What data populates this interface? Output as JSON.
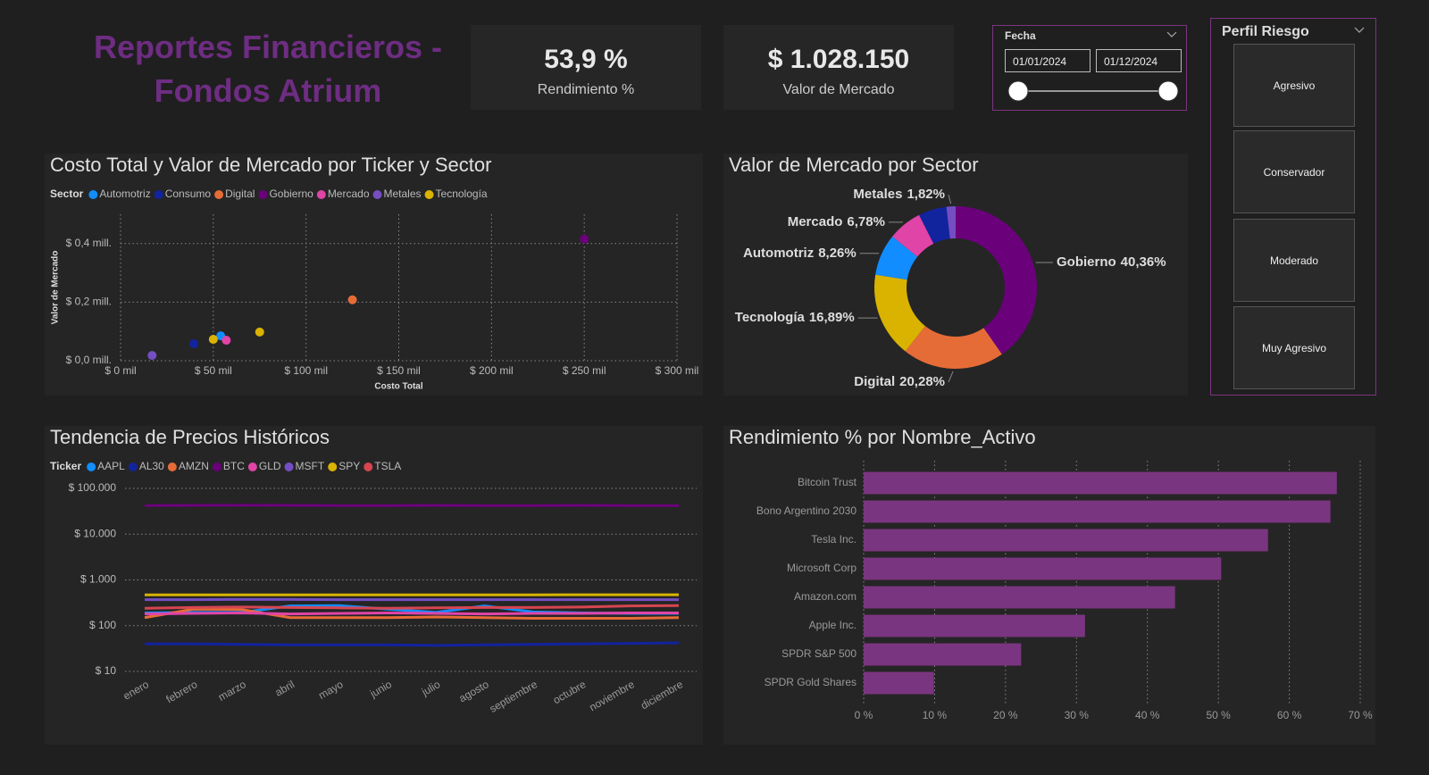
{
  "header": {
    "title": "Reportes Financieros - Fondos Atrium"
  },
  "kpis": [
    {
      "value": "53,9 %",
      "label": "Rendimiento %"
    },
    {
      "value": "$ 1.028.150",
      "label": "Valor de Mercado"
    }
  ],
  "date_filter": {
    "title": "Fecha",
    "start": "01/01/2024",
    "end": "01/12/2024"
  },
  "risk_filter": {
    "title": "Perfil Riesgo",
    "options": [
      "Agresivo",
      "Conservador",
      "Moderado",
      "Muy Agresivo"
    ]
  },
  "chart_data": [
    {
      "type": "scatter",
      "title": "Costo Total y Valor de Mercado por Ticker y Sector",
      "legend_title": "Sector",
      "x_label": "Costo Total",
      "y_label": "Valor de Mercado",
      "grid": true,
      "xlim": [
        0,
        300000
      ],
      "xticks": [
        {
          "value": 0,
          "label": "$ 0 mil"
        },
        {
          "value": 50000,
          "label": "$ 50 mil"
        },
        {
          "value": 100000,
          "label": "$ 100 mil"
        },
        {
          "value": 150000,
          "label": "$ 150 mil"
        },
        {
          "value": 200000,
          "label": "$ 200 mil"
        },
        {
          "value": 250000,
          "label": "$ 250 mil"
        },
        {
          "value": 300000,
          "label": "$ 300 mil"
        }
      ],
      "ylim": [
        0,
        500000
      ],
      "yticks": [
        {
          "value": 0,
          "label": "$ 0,0 mill."
        },
        {
          "value": 200000,
          "label": "$ 0,2 mill."
        },
        {
          "value": 400000,
          "label": "$ 0,4 mill."
        }
      ],
      "series": [
        {
          "name": "Automotriz",
          "color": "#118dff",
          "x": [
            54000
          ],
          "y": [
            85000
          ]
        },
        {
          "name": "Consumo",
          "color": "#12239e",
          "x": [
            39500
          ],
          "y": [
            58000
          ]
        },
        {
          "name": "Digital",
          "color": "#e66c37",
          "x": [
            125000
          ],
          "y": [
            208000
          ]
        },
        {
          "name": "Gobierno",
          "color": "#6b007b",
          "x": [
            250000
          ],
          "y": [
            415000
          ]
        },
        {
          "name": "Mercado",
          "color": "#e044a7",
          "x": [
            57000
          ],
          "y": [
            70000
          ]
        },
        {
          "name": "Metales",
          "color": "#744ec2",
          "x": [
            17000
          ],
          "y": [
            18000
          ]
        },
        {
          "name": "Tecnología",
          "color": "#d9b300",
          "x": [
            50000,
            75000
          ],
          "y": [
            73000,
            98000
          ]
        }
      ]
    },
    {
      "type": "donut",
      "title": "Valor de Mercado por Sector",
      "categories": [
        "Gobierno",
        "Digital",
        "Tecnología",
        "Automotriz",
        "Mercado",
        "Consumo",
        "Metales"
      ],
      "values": [
        40.36,
        20.28,
        16.89,
        8.26,
        6.78,
        5.61,
        1.82
      ],
      "value_labels": [
        "40,36%",
        "20,28%",
        "16,89%",
        "8,26%",
        "6,78%",
        null,
        "1,82%"
      ],
      "colors": [
        "#6b007b",
        "#e66c37",
        "#d9b300",
        "#118dff",
        "#e044a7",
        "#12239e",
        "#744ec2"
      ]
    },
    {
      "type": "line",
      "title": "Tendencia de Precios Históricos",
      "legend_title": "Ticker",
      "log_scale": true,
      "grid": true,
      "categories": [
        "enero",
        "febrero",
        "marzo",
        "abril",
        "mayo",
        "junio",
        "julio",
        "agosto",
        "septiembre",
        "octubre",
        "noviembre",
        "diciembre"
      ],
      "ylim": [
        10,
        100000
      ],
      "yticks": [
        {
          "value": 10,
          "label": "$ 10"
        },
        {
          "value": 100,
          "label": "$ 100"
        },
        {
          "value": 1000,
          "label": "$ 1.000"
        },
        {
          "value": 10000,
          "label": "$ 10.000"
        },
        {
          "value": 100000,
          "label": "$ 100.000"
        }
      ],
      "series": [
        {
          "name": "AAPL",
          "color": "#118dff",
          "values": [
            190,
            195,
            195,
            270,
            275,
            230,
            195,
            270,
            200,
            190,
            185,
            185
          ]
        },
        {
          "name": "AL30",
          "color": "#12239e",
          "values": [
            40,
            40,
            39,
            38,
            38,
            38,
            37,
            38,
            39,
            40,
            41,
            42
          ]
        },
        {
          "name": "AMZN",
          "color": "#e66c37",
          "values": [
            150,
            230,
            225,
            150,
            150,
            150,
            155,
            150,
            145,
            145,
            145,
            150
          ]
        },
        {
          "name": "BTC",
          "color": "#6b007b",
          "values": [
            42000,
            42500,
            43000,
            42500,
            42000,
            42000,
            42500,
            42000,
            42000,
            42500,
            42000,
            42000
          ]
        },
        {
          "name": "GLD",
          "color": "#e044a7",
          "values": [
            180,
            185,
            190,
            180,
            185,
            190,
            185,
            180,
            185,
            185,
            190,
            190
          ]
        },
        {
          "name": "MSFT",
          "color": "#744ec2",
          "values": [
            370,
            370,
            375,
            375,
            370,
            370,
            370,
            370,
            370,
            370,
            370,
            370
          ]
        },
        {
          "name": "SPY",
          "color": "#d9b300",
          "values": [
            470,
            470,
            470,
            470,
            470,
            470,
            470,
            470,
            470,
            475,
            475,
            475
          ]
        },
        {
          "name": "TSLA",
          "color": "#d64550",
          "values": [
            240,
            250,
            255,
            250,
            245,
            240,
            245,
            250,
            250,
            255,
            270,
            275
          ]
        }
      ]
    },
    {
      "type": "bar",
      "orientation": "horizontal",
      "title": "Rendimiento % por Nombre_Activo",
      "color": "#7a3580",
      "grid": true,
      "categories": [
        "Bitcoin Trust",
        "Bono Argentino 2030",
        "Tesla Inc.",
        "Microsoft Corp",
        "Amazon.com",
        "Apple Inc.",
        "SPDR S&P 500",
        "SPDR Gold Shares"
      ],
      "values": [
        66.7,
        65.8,
        57.0,
        50.4,
        43.9,
        31.2,
        22.2,
        9.9
      ],
      "xlim": [
        0,
        70
      ],
      "xticks": [
        {
          "value": 0,
          "label": "0 %"
        },
        {
          "value": 10,
          "label": "10 %"
        },
        {
          "value": 20,
          "label": "20 %"
        },
        {
          "value": 30,
          "label": "30 %"
        },
        {
          "value": 40,
          "label": "40 %"
        },
        {
          "value": 50,
          "label": "50 %"
        },
        {
          "value": 60,
          "label": "60 %"
        },
        {
          "value": 70,
          "label": "70 %"
        }
      ]
    }
  ]
}
